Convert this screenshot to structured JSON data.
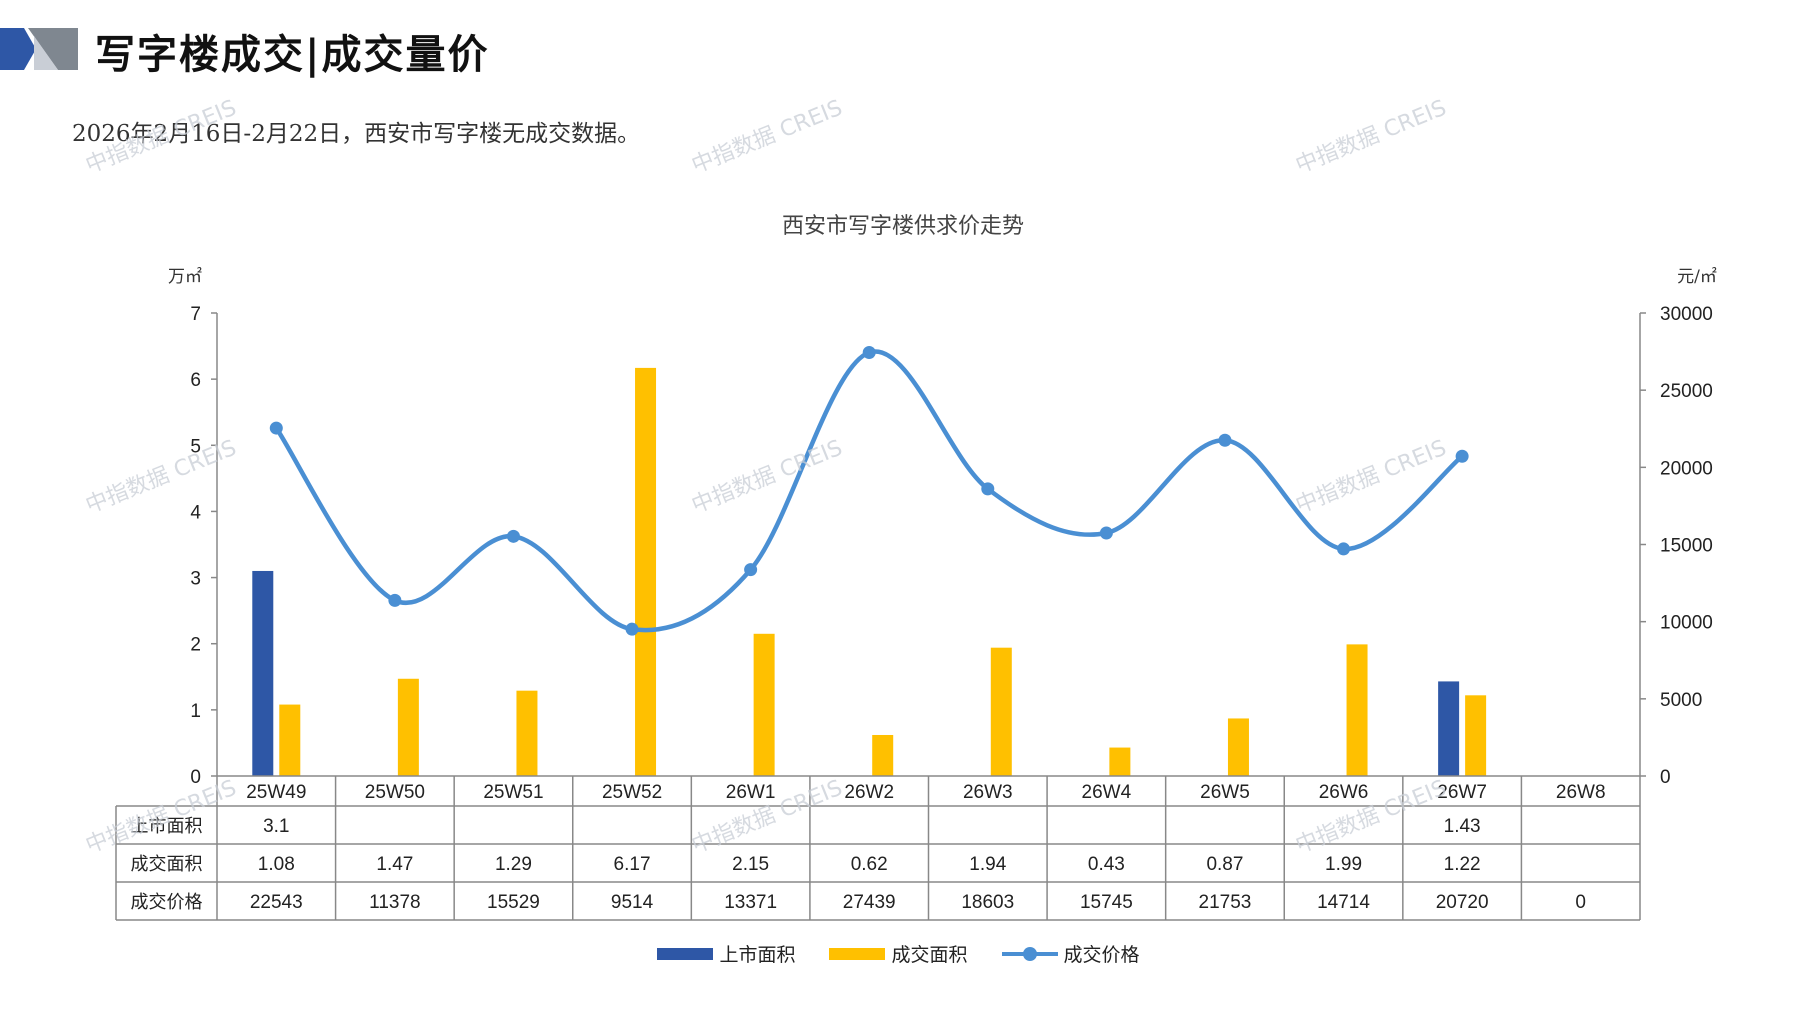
{
  "page": {
    "title": "写字楼成交|成交量价",
    "subtitle": "2026年2月16日-2月22日，西安市写字楼无成交数据。",
    "watermark": "中指数据 CREIS"
  },
  "colors": {
    "listing": "#2E57A6",
    "deal_area": "#FFC000",
    "deal_price": "#4A8FD3",
    "deco_blue": "#2E57A6",
    "deco_gray": "#7F8790"
  },
  "chart_data": {
    "type": "bar",
    "title": "西安市写字楼供求价走势",
    "y_left_unit": "万㎡",
    "y_right_unit": "元/㎡",
    "ylim_left": [
      0,
      7
    ],
    "ylim_right": [
      0,
      30000
    ],
    "y_left_ticks": [
      0,
      1,
      2,
      3,
      4,
      5,
      6,
      7
    ],
    "y_right_ticks": [
      0,
      5000,
      10000,
      15000,
      20000,
      25000,
      30000
    ],
    "categories": [
      "25W49",
      "25W50",
      "25W51",
      "25W52",
      "26W1",
      "26W2",
      "26W3",
      "26W4",
      "26W5",
      "26W6",
      "26W7",
      "26W8"
    ],
    "series": [
      {
        "name": "上市面积",
        "type": "bar",
        "axis": "left",
        "values": [
          3.1,
          null,
          null,
          null,
          null,
          null,
          null,
          null,
          null,
          null,
          1.43,
          null
        ],
        "labels": [
          "3.1",
          "",
          "",
          "",
          "",
          "",
          "",
          "",
          "",
          "",
          "1.43",
          ""
        ]
      },
      {
        "name": "成交面积",
        "type": "bar",
        "axis": "left",
        "values": [
          1.08,
          1.47,
          1.29,
          6.17,
          2.15,
          0.62,
          1.94,
          0.43,
          0.87,
          1.99,
          1.22,
          null
        ],
        "labels": [
          "1.08",
          "1.47",
          "1.29",
          "6.17",
          "2.15",
          "0.62",
          "1.94",
          "0.43",
          "0.87",
          "1.99",
          "1.22",
          ""
        ]
      },
      {
        "name": "成交价格",
        "type": "line",
        "axis": "right",
        "values": [
          22543,
          11378,
          15529,
          9514,
          13371,
          27439,
          18603,
          15745,
          21753,
          14714,
          20720,
          0
        ],
        "labels": [
          "22543",
          "11378",
          "15529",
          "9514",
          "13371",
          "27439",
          "18603",
          "15745",
          "21753",
          "14714",
          "20720",
          "0"
        ]
      }
    ],
    "legend": "bottom-center",
    "grid": false
  }
}
